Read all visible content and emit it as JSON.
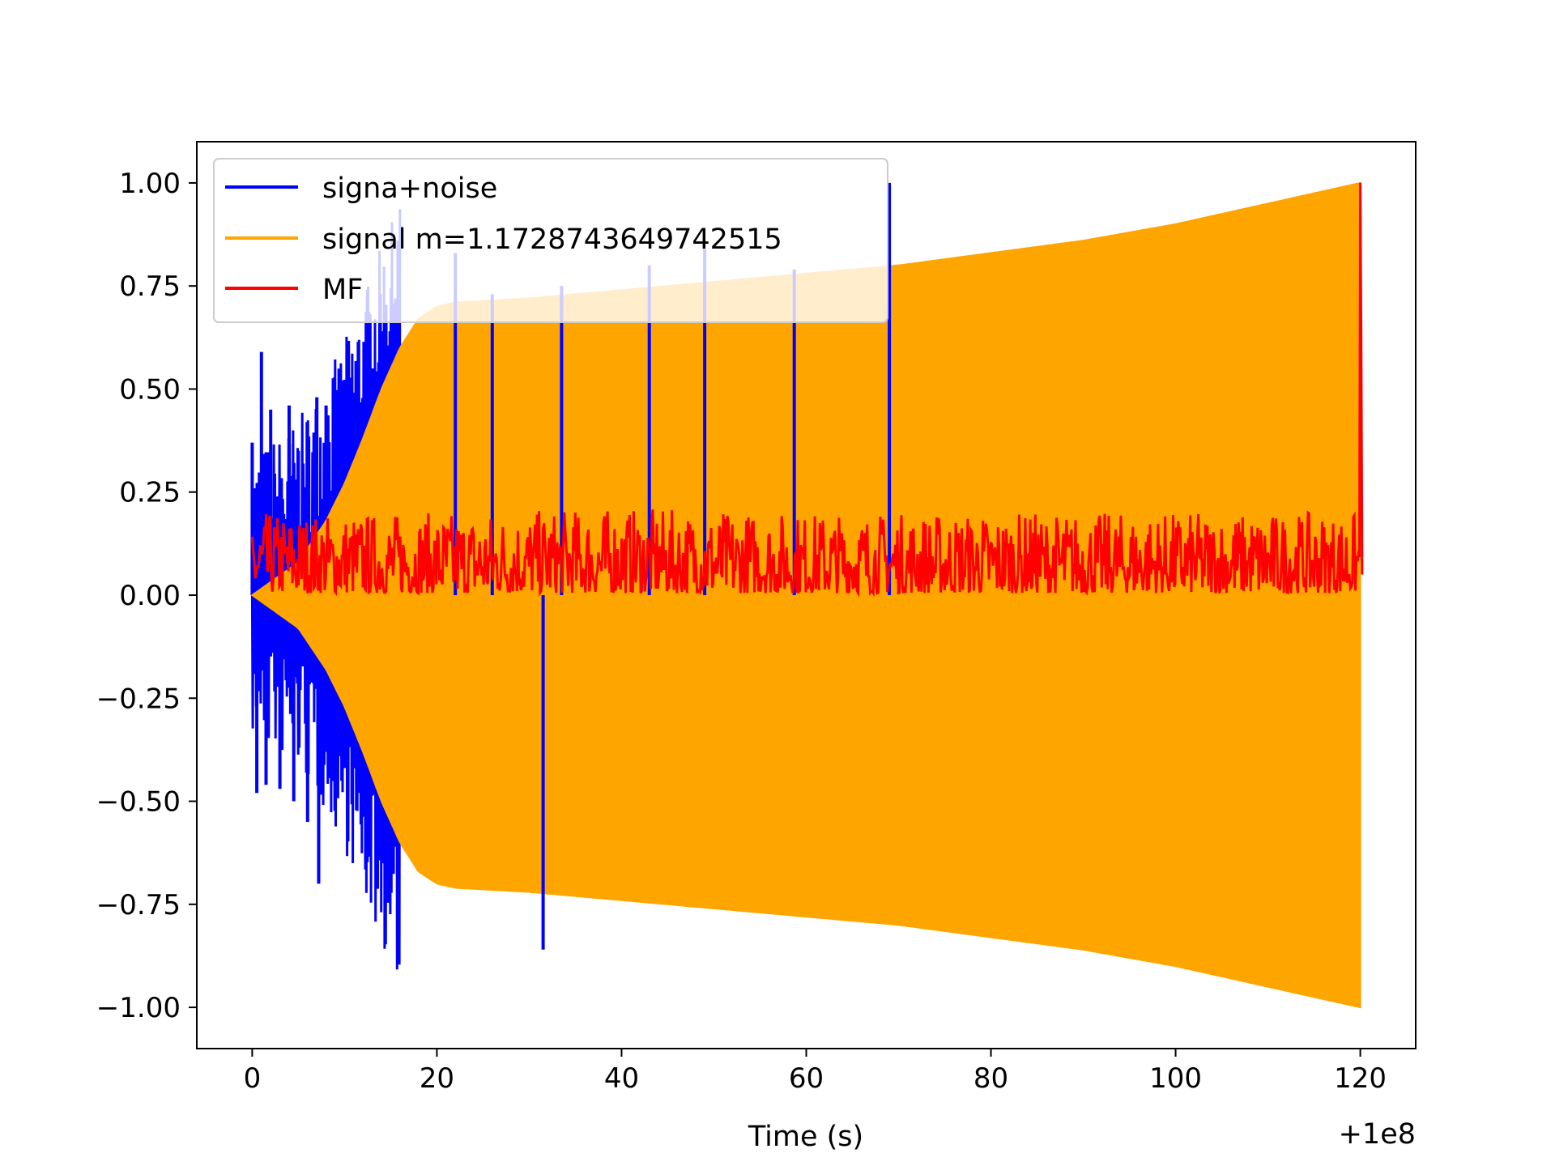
{
  "chart_data": {
    "type": "line",
    "title": "",
    "xlabel": "Time (s)",
    "ylabel": "",
    "x_offset_label": "+1e8",
    "xlim": [
      -6,
      126
    ],
    "ylim": [
      -1.1,
      1.1
    ],
    "x_ticks": [
      0,
      20,
      40,
      60,
      80,
      100,
      120
    ],
    "x_tick_labels": [
      "0",
      "20",
      "40",
      "60",
      "80",
      "100",
      "120"
    ],
    "y_ticks": [
      1.0,
      0.75,
      0.5,
      0.25,
      0.0,
      -0.25,
      -0.5,
      -0.75,
      -1.0
    ],
    "y_tick_labels": [
      "1.00",
      "0.75",
      "0.50",
      "0.25",
      "0.00",
      "−0.25",
      "−0.50",
      "−0.75",
      "−1.00"
    ],
    "grid": false,
    "legend_position": "top-left",
    "series": [
      {
        "name": "signa+noise",
        "color": "#0000ff",
        "x": [
          0,
          0.5,
          1,
          1.5,
          2,
          3,
          4,
          4.5,
          5,
          6,
          7,
          7.2,
          8,
          9,
          10,
          11,
          12.5,
          13,
          13.8,
          14.5,
          15,
          16,
          22,
          26,
          31.5,
          33.5,
          43,
          49,
          58.7,
          69
        ],
        "values": [
          0.37,
          -0.48,
          0.59,
          -0.46,
          0.45,
          -0.47,
          0.46,
          -0.5,
          0.35,
          -0.55,
          0.48,
          -0.7,
          0.46,
          -0.49,
          0.39,
          -0.42,
          0.74,
          0.55,
          -0.6,
          0.5,
          -0.71,
          0.54,
          0.83,
          0.73,
          -0.86,
          0.75,
          0.8,
          0.84,
          0.79,
          1.0
        ]
      },
      {
        "name": "signal m=1.1728743649742515",
        "color": "#ffa500",
        "x": [
          0,
          5,
          8,
          10,
          12,
          14,
          16,
          18,
          20,
          22,
          30,
          40,
          50,
          60,
          70,
          80,
          90,
          100,
          110,
          120
        ],
        "envelope": [
          0.0,
          0.08,
          0.18,
          0.27,
          0.38,
          0.5,
          0.6,
          0.67,
          0.7,
          0.71,
          0.72,
          0.74,
          0.76,
          0.78,
          0.8,
          0.83,
          0.86,
          0.9,
          0.95,
          1.0
        ]
      },
      {
        "name": "MF",
        "color": "#ff0000",
        "x": [
          0,
          20,
          40,
          60,
          80,
          100,
          119.9,
          120,
          120.2
        ],
        "baseline": 0.06,
        "noise_max": [
          0.2,
          0.2,
          0.21,
          0.2,
          0.2,
          0.2,
          0.2,
          1.0,
          0.05
        ]
      }
    ]
  }
}
